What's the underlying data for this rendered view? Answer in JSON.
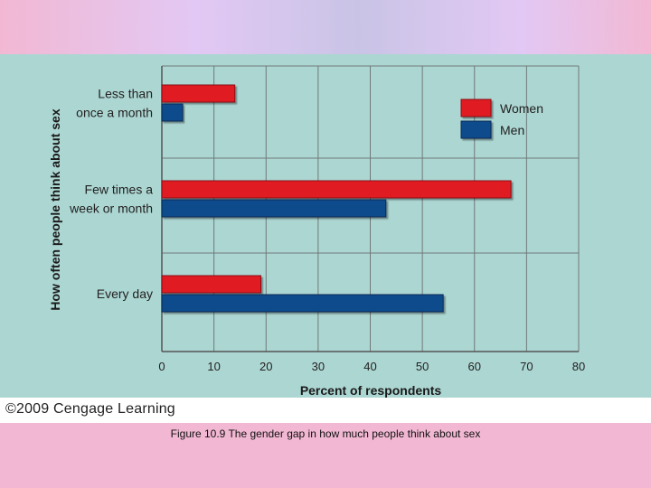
{
  "copyright": "©2009 Cengage Learning",
  "caption": "Figure 10.9  The gender gap in how much people think about sex",
  "colors": {
    "women": "#e01b24",
    "men": "#0d4b8c",
    "grid": "#6f7a7a",
    "panel": "#acd6d2"
  },
  "chart_data": {
    "type": "bar",
    "orientation": "horizontal",
    "categories": [
      [
        "Less than",
        "once a month"
      ],
      [
        "Few times a",
        "week or month"
      ],
      [
        "Every day"
      ]
    ],
    "series": [
      {
        "name": "Women",
        "values": [
          14,
          67,
          19
        ]
      },
      {
        "name": "Men",
        "values": [
          4,
          43,
          54
        ]
      }
    ],
    "xlabel": "Percent of respondents",
    "ylabel": "How often people think about sex",
    "xlim": [
      0,
      80
    ],
    "xticks": [
      "0",
      "10",
      "20",
      "30",
      "40",
      "50",
      "60",
      "70",
      "80"
    ],
    "legend": [
      "Women",
      "Men"
    ],
    "legend_position": "top-right",
    "grid": true
  }
}
